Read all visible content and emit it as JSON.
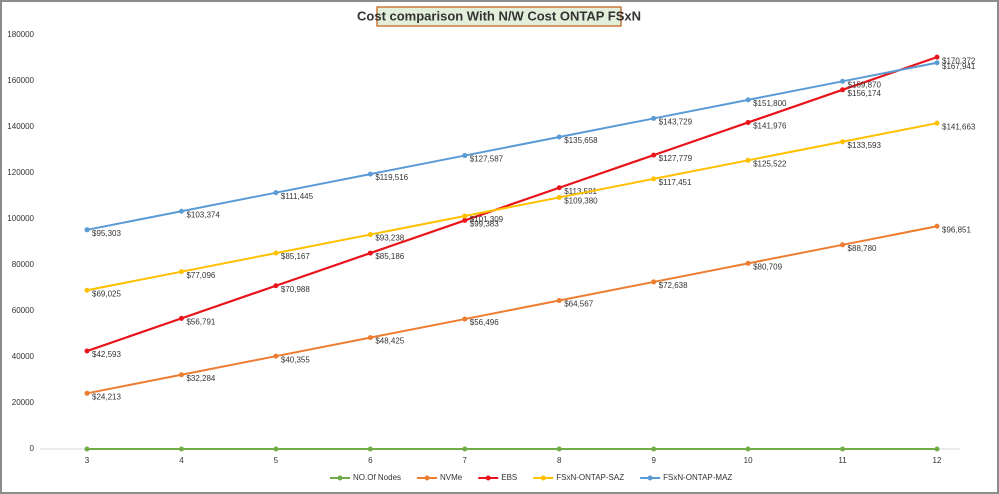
{
  "chart_data": {
    "type": "line",
    "title": "Cost comparison With N/W Cost ONTAP FSxN",
    "categories": [
      "3",
      "4",
      "5",
      "6",
      "7",
      "8",
      "9",
      "10",
      "11",
      "12"
    ],
    "ylim": [
      0,
      180000
    ],
    "yticks": [
      0,
      20000,
      40000,
      60000,
      80000,
      100000,
      120000,
      140000,
      160000,
      180000
    ],
    "grid": false,
    "legend": "bottom",
    "series": [
      {
        "name": "NO.Of Nodes",
        "color": "#70ad47",
        "values": [
          3,
          4,
          5,
          6,
          7,
          8,
          9,
          10,
          11,
          12
        ]
      },
      {
        "name": "NVMe",
        "color": "#ed7d31",
        "values": [
          24213,
          32284,
          40355,
          48425,
          56496,
          64567,
          72638,
          80709,
          88780,
          96851
        ],
        "value_labels": [
          "$24,213",
          "$32,284",
          "$40,355",
          "$48,425",
          "$56,496",
          "$64,567",
          "$72,638",
          "$80,709",
          "$88,780",
          "$96,851"
        ]
      },
      {
        "name": "EBS",
        "color": "#e8141b",
        "values": [
          42593,
          56791,
          70988,
          85186,
          99383,
          113581,
          127779,
          141976,
          156174,
          170372
        ],
        "value_labels": [
          "$42,593",
          "$56,791",
          "$70,988",
          "$85,186",
          "$99,383",
          "$113,581",
          "$127,779",
          "$141,976",
          "$156,174",
          "$170,372"
        ]
      },
      {
        "name": "FSxN-ONTAP-SAZ",
        "color": "#ffc000",
        "values": [
          69025,
          77096,
          85167,
          93238,
          101309,
          109380,
          117451,
          125522,
          133593,
          141663
        ],
        "value_labels": [
          "$69,025",
          "$77,096",
          "$85,167",
          "$93,238",
          "$101,309",
          "$109,380",
          "$117,451",
          "$125,522",
          "$133,593",
          "$141,663"
        ]
      },
      {
        "name": "FSxN-ONTAP-MAZ",
        "color": "#5b9bd5",
        "values": [
          95303,
          103374,
          111445,
          119516,
          127587,
          135658,
          143729,
          151800,
          159870,
          167941
        ],
        "value_labels": [
          "$95,303",
          "$103,374",
          "$111,445",
          "$119,516",
          "$127,587",
          "$135,658",
          "$143,729",
          "$151,800",
          "$159,870",
          "$167,941"
        ]
      }
    ]
  }
}
